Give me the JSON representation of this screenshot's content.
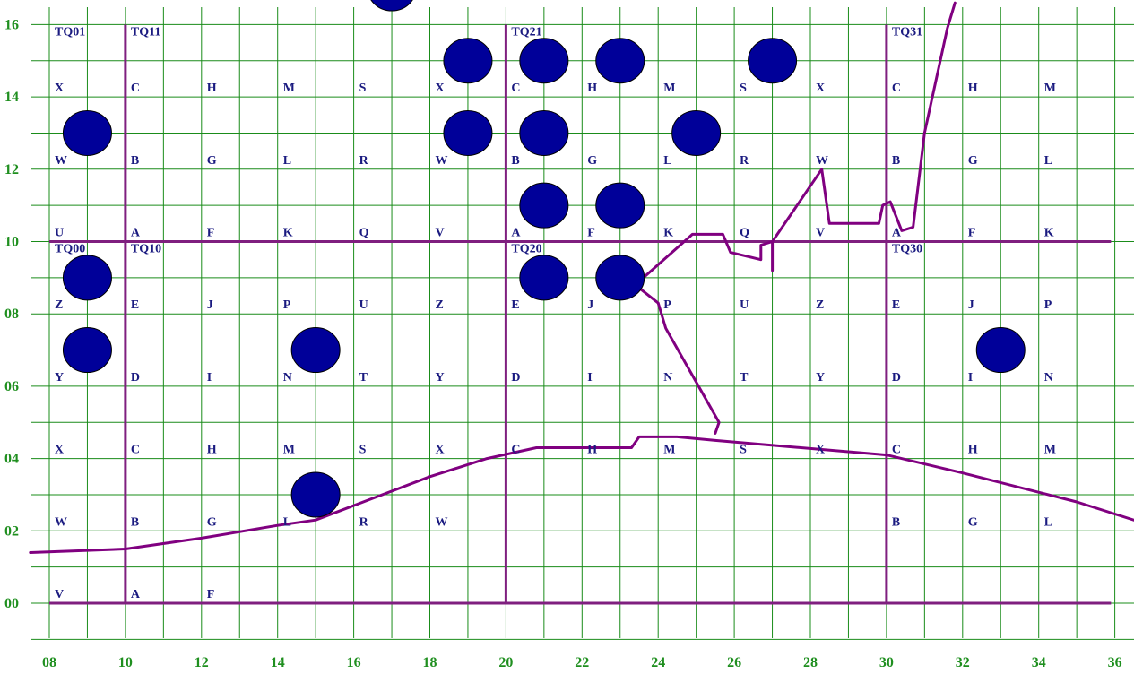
{
  "map": {
    "x_axis_labels": [
      "08",
      "10",
      "12",
      "14",
      "16",
      "18",
      "20",
      "22",
      "24",
      "26",
      "28",
      "30",
      "32",
      "34",
      "36"
    ],
    "y_axis_labels": [
      "00",
      "02",
      "04",
      "06",
      "08",
      "10",
      "12",
      "14",
      "16"
    ],
    "tile_labels": [
      {
        "text": "TQ01",
        "e": 8,
        "n": 16
      },
      {
        "text": "TQ11",
        "e": 10,
        "n": 16
      },
      {
        "text": "TQ21",
        "e": 20,
        "n": 16
      },
      {
        "text": "TQ31",
        "e": 30,
        "n": 16
      },
      {
        "text": "TQ00",
        "e": 8,
        "n": 10
      },
      {
        "text": "TQ10",
        "e": 10,
        "n": 10
      },
      {
        "text": "TQ20",
        "e": 20,
        "n": 10
      },
      {
        "text": "TQ30",
        "e": 30,
        "n": 10
      }
    ],
    "letter_rows": [
      {
        "n": 14,
        "items": [
          [
            8,
            "X"
          ],
          [
            10,
            "C"
          ],
          [
            12,
            "H"
          ],
          [
            14,
            "M"
          ],
          [
            16,
            "S"
          ],
          [
            18,
            "X"
          ],
          [
            20,
            "C"
          ],
          [
            22,
            "H"
          ],
          [
            24,
            "M"
          ],
          [
            26,
            "S"
          ],
          [
            28,
            "X"
          ],
          [
            30,
            "C"
          ],
          [
            32,
            "H"
          ],
          [
            34,
            "M"
          ]
        ]
      },
      {
        "n": 12,
        "items": [
          [
            8,
            "W"
          ],
          [
            10,
            "B"
          ],
          [
            12,
            "G"
          ],
          [
            14,
            "L"
          ],
          [
            16,
            "R"
          ],
          [
            18,
            "W"
          ],
          [
            20,
            "B"
          ],
          [
            22,
            "G"
          ],
          [
            24,
            "L"
          ],
          [
            26,
            "R"
          ],
          [
            28,
            "W"
          ],
          [
            30,
            "B"
          ],
          [
            32,
            "G"
          ],
          [
            34,
            "L"
          ]
        ]
      },
      {
        "n": 10,
        "items": [
          [
            8,
            "U"
          ],
          [
            10,
            "A"
          ],
          [
            12,
            "F"
          ],
          [
            14,
            "K"
          ],
          [
            16,
            "Q"
          ],
          [
            18,
            "V"
          ],
          [
            20,
            "A"
          ],
          [
            22,
            "F"
          ],
          [
            24,
            "K"
          ],
          [
            26,
            "Q"
          ],
          [
            28,
            "V"
          ],
          [
            30,
            "A"
          ],
          [
            32,
            "F"
          ],
          [
            34,
            "K"
          ]
        ]
      },
      {
        "n": 8,
        "items": [
          [
            8,
            "Z"
          ],
          [
            10,
            "E"
          ],
          [
            12,
            "J"
          ],
          [
            14,
            "P"
          ],
          [
            16,
            "U"
          ],
          [
            18,
            "Z"
          ],
          [
            20,
            "E"
          ],
          [
            22,
            "J"
          ],
          [
            24,
            "P"
          ],
          [
            26,
            "U"
          ],
          [
            28,
            "Z"
          ],
          [
            30,
            "E"
          ],
          [
            32,
            "J"
          ],
          [
            34,
            "P"
          ]
        ]
      },
      {
        "n": 6,
        "items": [
          [
            8,
            "Y"
          ],
          [
            10,
            "D"
          ],
          [
            12,
            "I"
          ],
          [
            14,
            "N"
          ],
          [
            16,
            "T"
          ],
          [
            18,
            "Y"
          ],
          [
            20,
            "D"
          ],
          [
            22,
            "I"
          ],
          [
            24,
            "N"
          ],
          [
            26,
            "T"
          ],
          [
            28,
            "Y"
          ],
          [
            30,
            "D"
          ],
          [
            32,
            "I"
          ],
          [
            34,
            "N"
          ]
        ]
      },
      {
        "n": 4,
        "items": [
          [
            8,
            "X"
          ],
          [
            10,
            "C"
          ],
          [
            12,
            "H"
          ],
          [
            14,
            "M"
          ],
          [
            16,
            "S"
          ],
          [
            18,
            "X"
          ],
          [
            20,
            "C"
          ],
          [
            22,
            "H"
          ],
          [
            24,
            "M"
          ],
          [
            26,
            "S"
          ],
          [
            28,
            "X"
          ],
          [
            30,
            "C"
          ],
          [
            32,
            "H"
          ],
          [
            34,
            "M"
          ]
        ]
      },
      {
        "n": 2,
        "items": [
          [
            8,
            "W"
          ],
          [
            10,
            "B"
          ],
          [
            12,
            "G"
          ],
          [
            14,
            "L"
          ],
          [
            16,
            "R"
          ],
          [
            18,
            "W"
          ],
          [
            30,
            "B"
          ],
          [
            32,
            "G"
          ],
          [
            34,
            "L"
          ]
        ]
      },
      {
        "n": 0,
        "items": [
          [
            8,
            "V"
          ],
          [
            10,
            "A"
          ],
          [
            12,
            "F"
          ]
        ]
      }
    ],
    "markers": [
      [
        17,
        17
      ],
      [
        19,
        15
      ],
      [
        21,
        15
      ],
      [
        23,
        15
      ],
      [
        27,
        15
      ],
      [
        9,
        13
      ],
      [
        19,
        13
      ],
      [
        21,
        13
      ],
      [
        25,
        13
      ],
      [
        21,
        11
      ],
      [
        23,
        11
      ],
      [
        9,
        9
      ],
      [
        21,
        9
      ],
      [
        23,
        9
      ],
      [
        9,
        7
      ],
      [
        15,
        7
      ],
      [
        33,
        7
      ],
      [
        15,
        3
      ]
    ],
    "colors": {
      "grid": "#1a8c1a",
      "axis_labels": "#1f8f1f",
      "letters": "#1a1a80",
      "tile_borders": "#7f1f7f",
      "overlay": "#800080",
      "markers": "#000099"
    }
  }
}
